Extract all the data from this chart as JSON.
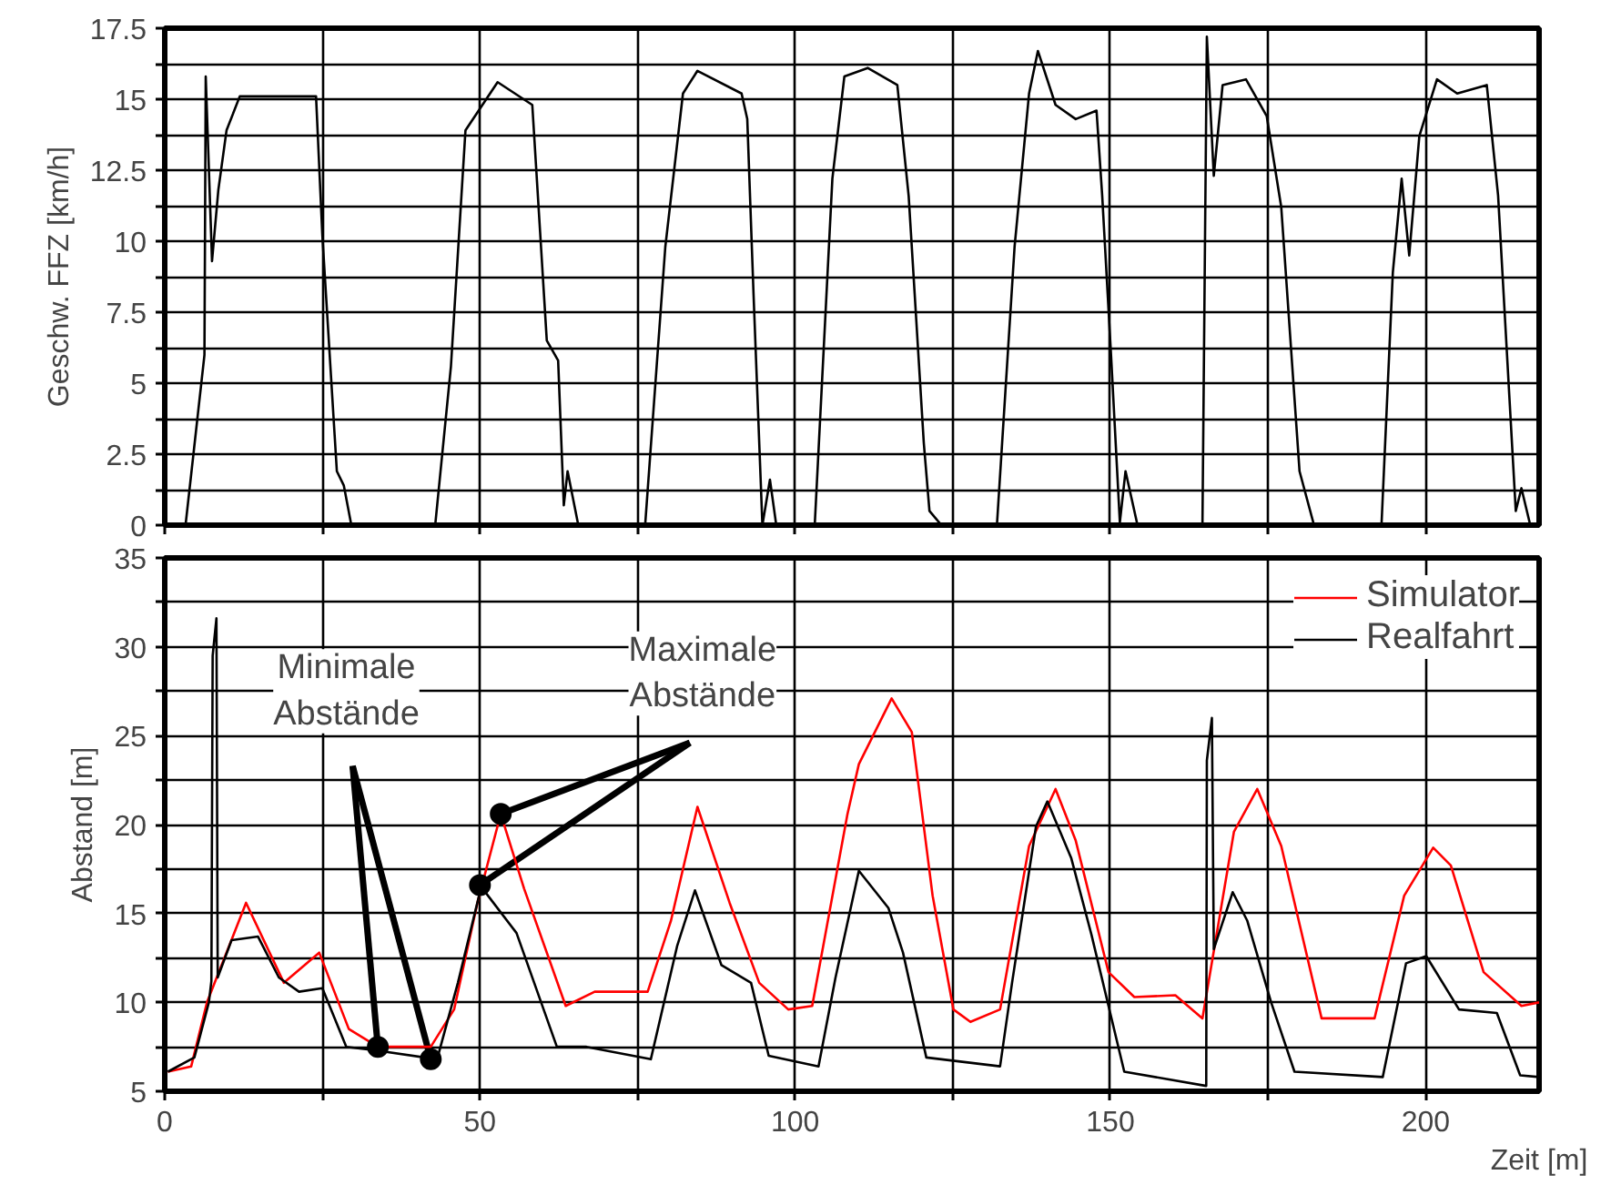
{
  "chart_data": [
    {
      "type": "line",
      "ylabel": "Geschw. FFZ [km/h]",
      "color": "#000000",
      "x": [
        0,
        3.3,
        6.3,
        6.5,
        7.5,
        8.5,
        9.8,
        11.9,
        24,
        25,
        27.3,
        28.4,
        29.6,
        42.9,
        45.4,
        47.7,
        52.8,
        58.3,
        60.6,
        62.4,
        63.3,
        63.9,
        65.6,
        76.2,
        79.4,
        82.2,
        84.5,
        91.5,
        92.4,
        93.4,
        94.8,
        96,
        97,
        103.1,
        105.9,
        107.8,
        111.5,
        116.2,
        118,
        120.4,
        121.3,
        123.2,
        132,
        134.8,
        137.1,
        138.5,
        141.3,
        144.5,
        147.8,
        148.7,
        150.1,
        151.5,
        152.4,
        154.3,
        164.6,
        165.3,
        166.4,
        167.8,
        171.5,
        174.8,
        177.1,
        180,
        182.3,
        193,
        194.8,
        196.2,
        197.4,
        199,
        201.8,
        205,
        209.7,
        211.5,
        214.3,
        215.2,
        216.6,
        218
      ],
      "values": [
        0,
        0,
        6.0,
        15.8,
        9.3,
        11.8,
        13.9,
        15.1,
        15.1,
        10.2,
        1.9,
        1.4,
        0,
        0,
        5.6,
        13.9,
        15.6,
        14.8,
        6.5,
        5.8,
        0.7,
        1.9,
        0,
        0,
        9.8,
        15.2,
        16.0,
        15.2,
        14.3,
        8.1,
        0,
        1.6,
        0,
        0,
        12.2,
        15.8,
        16.1,
        15.5,
        11.6,
        2.9,
        0.5,
        0,
        0,
        9.8,
        15.2,
        16.7,
        14.8,
        14.3,
        14.6,
        11.6,
        6.0,
        0.1,
        1.9,
        0,
        0,
        17.2,
        12.3,
        15.5,
        15.7,
        14.4,
        11.2,
        1.9,
        0,
        0,
        8.9,
        12.2,
        9.5,
        13.7,
        15.7,
        15.2,
        15.5,
        11.6,
        0.5,
        1.3,
        0,
        0
      ],
      "xlim": [
        0,
        218
      ],
      "xticks": [
        {
          "value": 0,
          "label": null
        },
        {
          "value": 25,
          "label": null
        },
        {
          "value": 50,
          "label": null
        },
        {
          "value": 75,
          "label": null
        },
        {
          "value": 100,
          "label": null
        },
        {
          "value": 125,
          "label": null
        },
        {
          "value": 150,
          "label": null
        },
        {
          "value": 175,
          "label": null
        },
        {
          "value": 200,
          "label": null
        }
      ],
      "ylim": [
        0,
        17.5
      ],
      "yticks": [
        0,
        {
          "value": 1.25,
          "label": null
        },
        2.5,
        {
          "value": 3.75,
          "label": null
        },
        5,
        {
          "value": 6.25,
          "label": null
        },
        7.5,
        {
          "value": 8.75,
          "label": null
        },
        10,
        {
          "value": 11.25,
          "label": null
        },
        12.5,
        {
          "value": 13.75,
          "label": null
        },
        15,
        {
          "value": 16.25,
          "label": null
        },
        17.5
      ],
      "grid": true,
      "tick_labels": "y"
    },
    {
      "type": "line",
      "xlabel": "Zeit [m]",
      "ylabel": "Abstand [m]",
      "series": [
        {
          "name": "Simulator",
          "color": "#ff0000",
          "x": [
            0.5,
            4.2,
            6.7,
            12.9,
            18.9,
            24.5,
            29.2,
            33.8,
            42.2,
            45.9,
            49.6,
            53.3,
            57,
            63.6,
            68.2,
            76.6,
            80.3,
            84.5,
            89.6,
            94.3,
            98.9,
            102.7,
            108.3,
            110.1,
            115.3,
            118.5,
            121.8,
            125.1,
            127.8,
            132.5,
            137.1,
            141.3,
            144.5,
            149.7,
            153.8,
            160.3,
            164.6,
            169.6,
            173.3,
            177.1,
            183.5,
            191.9,
            196.6,
            201.2,
            204,
            209.2,
            215.2,
            218
          ],
          "values": [
            6.1,
            6.4,
            10,
            15.6,
            11.1,
            12.8,
            8.5,
            7.5,
            7.5,
            9.6,
            15.6,
            20.6,
            16.4,
            9.8,
            10.6,
            10.6,
            14.6,
            21,
            15.6,
            11.1,
            9.6,
            9.8,
            20.6,
            23.4,
            27.1,
            25.2,
            16,
            9.6,
            8.9,
            9.6,
            18.8,
            22,
            19.1,
            11.7,
            10.3,
            10.4,
            9.1,
            19.6,
            22,
            18.8,
            9.1,
            9.1,
            16,
            18.7,
            17.7,
            11.7,
            9.8,
            10
          ]
        },
        {
          "name": "Realfahrt",
          "color": "#000000",
          "x": [
            0.5,
            4.7,
            7,
            7.4,
            7.6,
            8.2,
            8.4,
            10.6,
            14.8,
            18.1,
            21.3,
            25,
            28.8,
            33.4,
            43.2,
            46.5,
            50.2,
            55.8,
            62.2,
            66.9,
            77.1,
            81.3,
            84.1,
            88.3,
            93,
            95.8,
            103.7,
            106.4,
            110.1,
            114.8,
            117.1,
            120.8,
            132.5,
            134.4,
            138.2,
            140,
            143.8,
            147,
            152.2,
            165.2,
            165.3,
            166.1,
            166.4,
            169.4,
            171.7,
            175.5,
            179.2,
            193.2,
            196.9,
            200.1,
            205.3,
            211.3,
            215,
            218
          ],
          "values": [
            6.1,
            6.9,
            10,
            11.2,
            29.5,
            31.6,
            11.4,
            13.5,
            13.7,
            11.4,
            10.6,
            10.8,
            7.5,
            7.3,
            6.8,
            11.1,
            16.5,
            13.9,
            7.5,
            7.5,
            6.8,
            13.2,
            16.3,
            12.1,
            11.1,
            7,
            6.4,
            11.4,
            17.4,
            15.3,
            12.8,
            6.9,
            6.4,
            11.1,
            19.9,
            21.3,
            18.1,
            13.8,
            6.1,
            5.3,
            23.6,
            26,
            13,
            16.2,
            14.6,
            10,
            6.1,
            5.8,
            12.2,
            12.6,
            9.6,
            9.4,
            5.9,
            5.8
          ]
        },
        {
          "type": "scatter",
          "marker": "circle",
          "color": "#000000",
          "x": [
            33.8,
            42.2,
            50,
            53.3
          ],
          "values": [
            7.5,
            6.8,
            16.6,
            20.6
          ]
        }
      ],
      "annotations": [
        {
          "text": "Minimale\nAbstände",
          "x": 33.8,
          "y": 7.5
        },
        {
          "text": "Maximale\nAbstände",
          "x": 53.3,
          "y": 20.6
        }
      ],
      "xlim": [
        0,
        218
      ],
      "xticks": [
        0,
        {
          "value": 25,
          "label": null
        },
        50,
        {
          "value": 75,
          "label": null
        },
        100,
        {
          "value": 125,
          "label": null
        },
        150,
        {
          "value": 175,
          "label": null
        },
        200
      ],
      "ylim": [
        5,
        35
      ],
      "yticks": [
        5,
        {
          "value": 7.5,
          "label": null
        },
        10,
        {
          "value": 12.5,
          "label": null
        },
        15,
        {
          "value": 17.5,
          "label": null
        },
        20,
        {
          "value": 22.5,
          "label": null
        },
        25,
        {
          "value": 27.5,
          "label": null
        },
        30,
        {
          "value": 32.5,
          "label": null
        },
        35
      ],
      "grid": true,
      "legend": "top right"
    }
  ]
}
